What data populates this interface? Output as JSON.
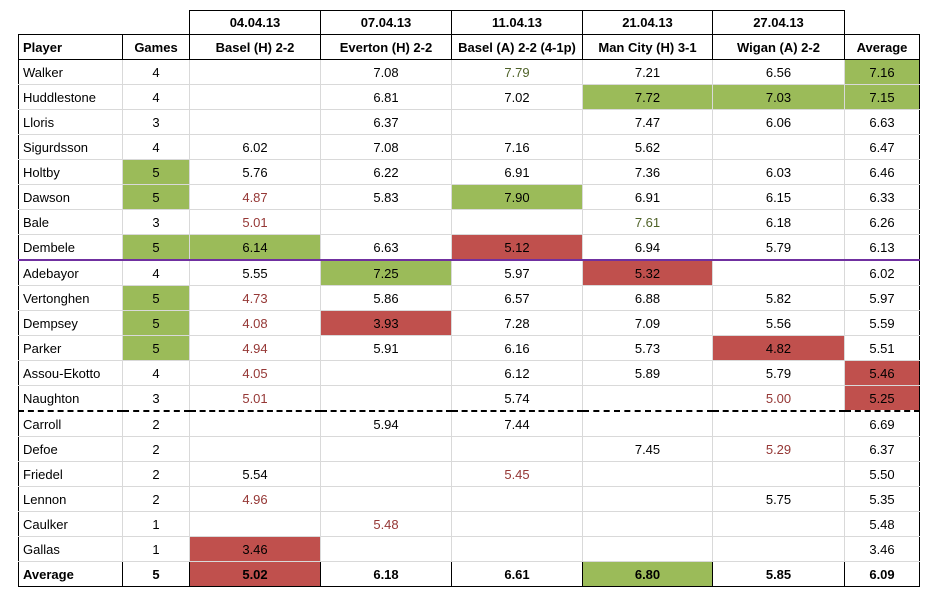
{
  "colors": {
    "good": "#9bbb59",
    "bad": "#c0504d",
    "bad_text": "#953735",
    "good_text": "#4f6228",
    "purple_divider": "#7030a0"
  },
  "header": {
    "dates": [
      "04.04.13",
      "07.04.13",
      "11.04.13",
      "21.04.13",
      "27.04.13"
    ],
    "player": "Player",
    "games": "Games",
    "matches": [
      "Basel (H) 2-2",
      "Everton (H) 2-2",
      "Basel (A) 2-2 (4-1p)",
      "Man City (H) 3-1",
      "Wigan (A) 2-2"
    ],
    "average": "Average"
  },
  "rows": [
    {
      "player": "Walker",
      "games": "4",
      "m": [
        "",
        "7.08",
        "7.79",
        "7.21",
        "6.56"
      ],
      "avg": "7.16"
    },
    {
      "player": "Huddlestone",
      "games": "4",
      "m": [
        "",
        "6.81",
        "7.02",
        "7.72",
        "7.03"
      ],
      "avg": "7.15"
    },
    {
      "player": "Lloris",
      "games": "3",
      "m": [
        "",
        "6.37",
        "",
        "7.47",
        "6.06"
      ],
      "avg": "6.63"
    },
    {
      "player": "Sigurdsson",
      "games": "4",
      "m": [
        "6.02",
        "7.08",
        "7.16",
        "5.62",
        ""
      ],
      "avg": "6.47"
    },
    {
      "player": "Holtby",
      "games": "5",
      "m": [
        "5.76",
        "6.22",
        "6.91",
        "7.36",
        "6.03"
      ],
      "avg": "6.46"
    },
    {
      "player": "Dawson",
      "games": "5",
      "m": [
        "4.87",
        "5.83",
        "7.90",
        "6.91",
        "6.15"
      ],
      "avg": "6.33"
    },
    {
      "player": "Bale",
      "games": "3",
      "m": [
        "5.01",
        "",
        "",
        "7.61",
        "6.18"
      ],
      "avg": "6.26"
    },
    {
      "player": "Dembele",
      "games": "5",
      "m": [
        "6.14",
        "6.63",
        "5.12",
        "6.94",
        "5.79"
      ],
      "avg": "6.13"
    },
    {
      "player": "Adebayor",
      "games": "4",
      "m": [
        "5.55",
        "7.25",
        "5.97",
        "5.32",
        ""
      ],
      "avg": "6.02"
    },
    {
      "player": "Vertonghen",
      "games": "5",
      "m": [
        "4.73",
        "5.86",
        "6.57",
        "6.88",
        "5.82"
      ],
      "avg": "5.97"
    },
    {
      "player": "Dempsey",
      "games": "5",
      "m": [
        "4.08",
        "3.93",
        "7.28",
        "7.09",
        "5.56"
      ],
      "avg": "5.59"
    },
    {
      "player": "Parker",
      "games": "5",
      "m": [
        "4.94",
        "5.91",
        "6.16",
        "5.73",
        "4.82"
      ],
      "avg": "5.51"
    },
    {
      "player": "Assou-Ekotto",
      "games": "4",
      "m": [
        "4.05",
        "",
        "6.12",
        "5.89",
        "5.79"
      ],
      "avg": "5.46"
    },
    {
      "player": "Naughton",
      "games": "3",
      "m": [
        "5.01",
        "",
        "5.74",
        "",
        "5.00"
      ],
      "avg": "5.25"
    },
    {
      "player": "Carroll",
      "games": "2",
      "m": [
        "",
        "5.94",
        "7.44",
        "",
        ""
      ],
      "avg": "6.69"
    },
    {
      "player": "Defoe",
      "games": "2",
      "m": [
        "",
        "",
        "",
        "7.45",
        "5.29"
      ],
      "avg": "6.37"
    },
    {
      "player": "Friedel",
      "games": "2",
      "m": [
        "5.54",
        "",
        "5.45",
        "",
        ""
      ],
      "avg": "5.50"
    },
    {
      "player": "Lennon",
      "games": "2",
      "m": [
        "4.96",
        "",
        "",
        "",
        "5.75"
      ],
      "avg": "5.35"
    },
    {
      "player": "Caulker",
      "games": "1",
      "m": [
        "",
        "5.48",
        "",
        "",
        ""
      ],
      "avg": "5.48"
    },
    {
      "player": "Gallas",
      "games": "1",
      "m": [
        "3.46",
        "",
        "",
        "",
        ""
      ],
      "avg": "3.46"
    }
  ],
  "footer": {
    "label": "Average",
    "games": "5",
    "m": [
      "5.02",
      "6.18",
      "6.61",
      "6.80",
      "5.85"
    ],
    "avg": "6.09"
  }
}
